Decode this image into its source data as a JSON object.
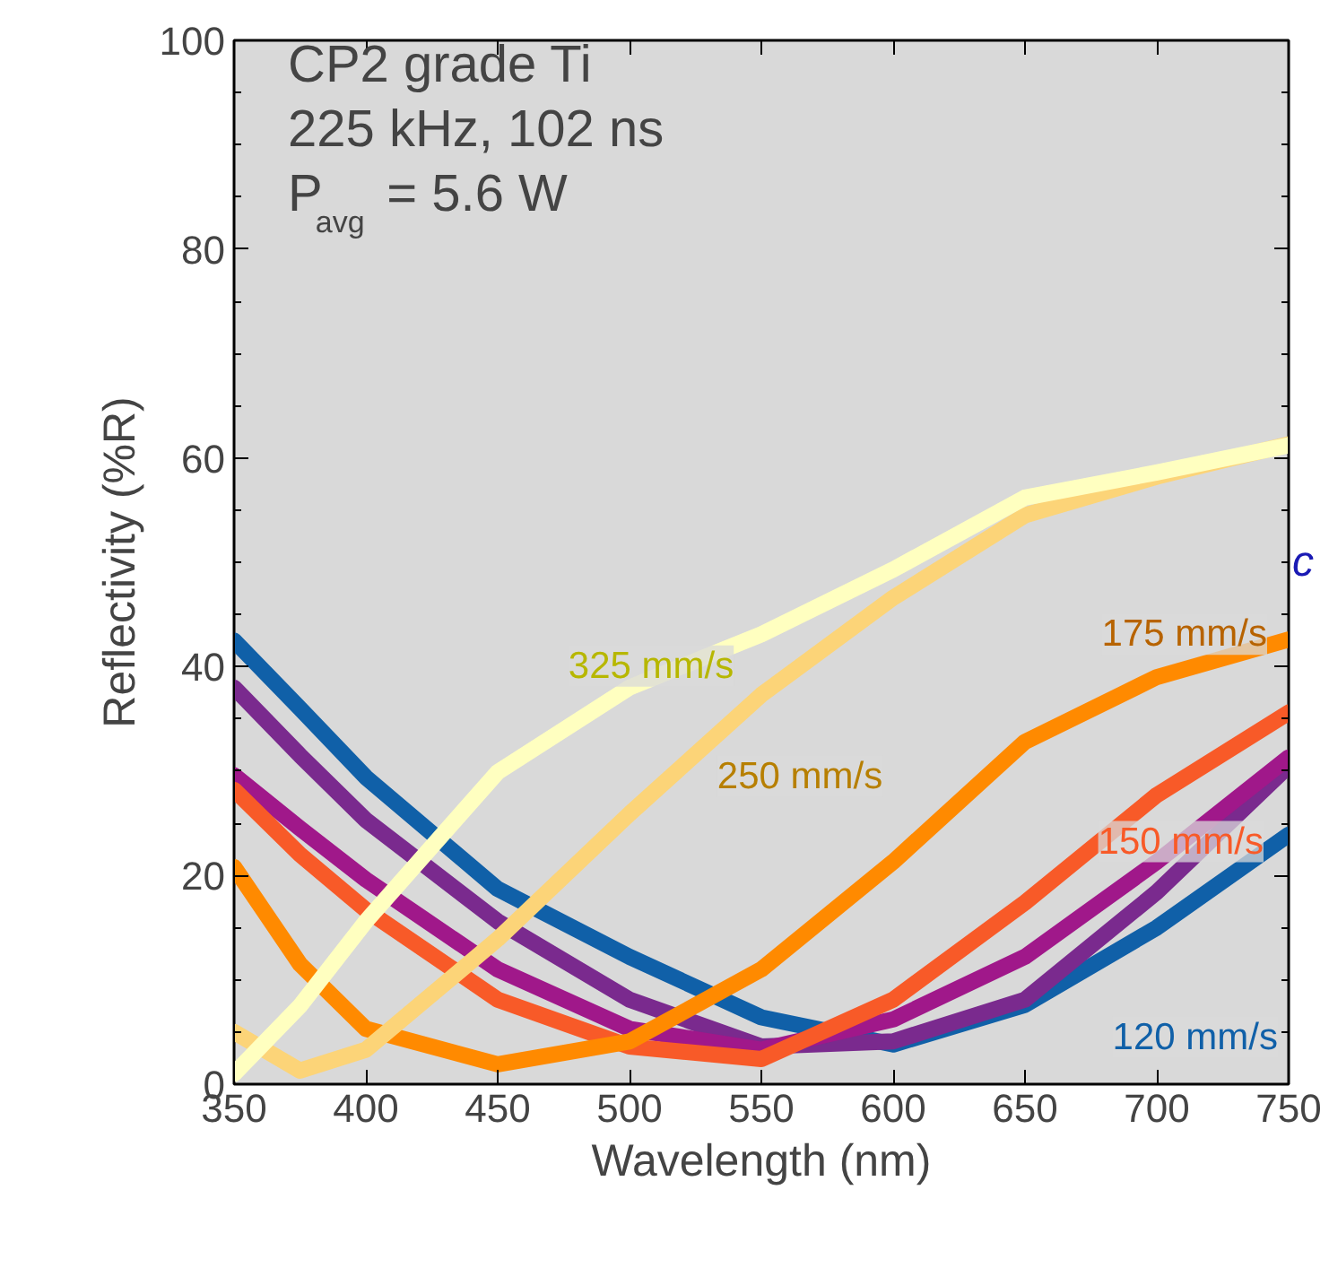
{
  "chart_data": {
    "type": "line",
    "xlabel": "Wavelength (nm)",
    "ylabel": "Reflectivity (%R)",
    "x": [
      350,
      375,
      400,
      450,
      500,
      550,
      600,
      650,
      700,
      750
    ],
    "xlim": [
      350,
      750
    ],
    "xticks": [
      350,
      400,
      450,
      500,
      550,
      600,
      650,
      700,
      750
    ],
    "ylim": [
      0,
      100
    ],
    "yticks": [
      0,
      {
        "value": 5,
        "label": null
      },
      {
        "value": 10,
        "label": null
      },
      {
        "value": 15,
        "label": null
      },
      20,
      {
        "value": 25,
        "label": null
      },
      {
        "value": 30,
        "label": null
      },
      {
        "value": 35,
        "label": null
      },
      40,
      {
        "value": 45,
        "label": null
      },
      {
        "value": 50,
        "label": null
      },
      {
        "value": 55,
        "label": null
      },
      60,
      {
        "value": 65,
        "label": null
      },
      {
        "value": 70,
        "label": null
      },
      {
        "value": 75,
        "label": null
      },
      80,
      {
        "value": 85,
        "label": null
      },
      {
        "value": 90,
        "label": null
      },
      {
        "value": 95,
        "label": null
      },
      100
    ],
    "grid": false,
    "marker": "none",
    "line_style": "solid",
    "series": [
      {
        "name": "120 mm/s",
        "color": "#1060a8",
        "values": [
          42.5,
          36,
          29.4,
          18.7,
          12.2,
          6.4,
          3.8,
          7.6,
          15,
          23.9
        ]
      },
      {
        "color": "#7a2a8e",
        "values": [
          38,
          31.5,
          25.3,
          15.6,
          8.1,
          3.6,
          4.1,
          8.1,
          18.4,
          30.5
        ]
      },
      {
        "color": "#a0188a",
        "values": [
          29.6,
          24.5,
          19.6,
          11,
          5.3,
          3.3,
          6.2,
          12.2,
          21.3,
          31.3
        ]
      },
      {
        "name": "150 mm/s",
        "color": "#f85a28",
        "values": [
          28.2,
          22,
          16.7,
          8.1,
          3.6,
          2.4,
          8.1,
          17.4,
          27.7,
          35.6
        ]
      },
      {
        "name": "175 mm/s",
        "color": "#ff8a00",
        "values": [
          20.8,
          11.5,
          5.3,
          1.9,
          4.1,
          11,
          21.3,
          32.8,
          39,
          42.6
        ]
      },
      {
        "name": "250 mm/s",
        "color": "#fcd478",
        "values": [
          5,
          1.3,
          3.3,
          13.9,
          25.9,
          37.3,
          46.6,
          54.5,
          58.2,
          61.3
        ]
      },
      {
        "name": "325 mm/s",
        "color": "#ffffc0",
        "values": [
          1,
          7.5,
          15.6,
          29.9,
          38,
          43.1,
          49.3,
          56.2,
          58.6,
          61.2
        ]
      }
    ],
    "annotations": [
      "CP2 grade Ti",
      "225 kHz, 102 ns",
      "P$_{avg}$ = 5.6 W",
      "c"
    ]
  }
}
